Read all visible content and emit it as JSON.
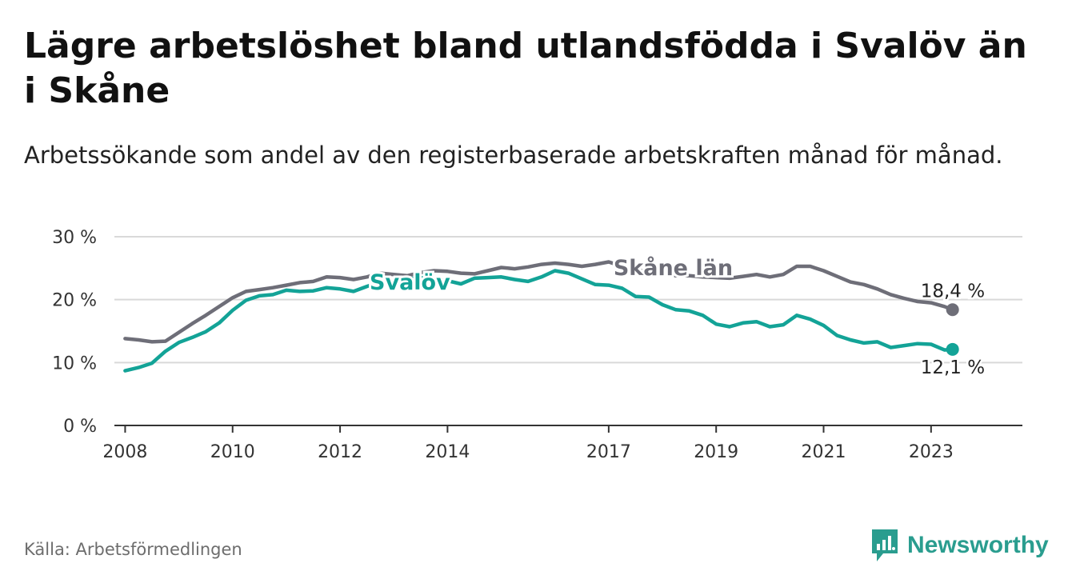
{
  "title": "Lägre arbetslöshet bland utlandsfödda i Svalöv än i Skåne",
  "subtitle": "Arbetssökande som andel av den registerbaserade arbetskraften månad för månad.",
  "source": "Källa: Arbetsförmedlingen",
  "brand": "Newsworthy",
  "colors": {
    "svalov": "#13a397",
    "skane": "#6e6e78",
    "grid": "#d9d9d9",
    "axis": "#333333",
    "brand": "#2a9d8f"
  },
  "chart_data": {
    "type": "line",
    "title": "Lägre arbetslöshet bland utlandsfödda i Svalöv än i Skåne",
    "xlabel": "",
    "ylabel": "",
    "xlim": [
      2007.8,
      2024.7
    ],
    "ylim": [
      0,
      30
    ],
    "y_ticks": [
      0,
      10,
      20,
      30
    ],
    "y_tick_labels": [
      "0 %",
      "10 %",
      "20 %",
      "30 %"
    ],
    "x_ticks": [
      2008,
      2010,
      2012,
      2014,
      2017,
      2019,
      2021,
      2023
    ],
    "x_tick_labels": [
      "2008",
      "2010",
      "2012",
      "2014",
      "2017",
      "2019",
      "2021",
      "2023"
    ],
    "series": [
      {
        "name": "Skåne län",
        "key": "skane",
        "label": "Skåne län",
        "end_label": "18,4 %",
        "x": [
          2008.0,
          2008.25,
          2008.5,
          2008.75,
          2009.0,
          2009.25,
          2009.5,
          2009.75,
          2010.0,
          2010.25,
          2010.5,
          2010.75,
          2011.0,
          2011.25,
          2011.5,
          2011.75,
          2012.0,
          2012.25,
          2012.5,
          2012.75,
          2013.0,
          2013.25,
          2013.5,
          2013.75,
          2014.0,
          2014.25,
          2014.5,
          2014.75,
          2015.0,
          2015.25,
          2015.5,
          2015.75,
          2016.0,
          2016.25,
          2016.5,
          2016.75,
          2017.0,
          2017.25,
          2017.5,
          2017.75,
          2018.0,
          2018.25,
          2018.5,
          2018.75,
          2019.0,
          2019.25,
          2019.5,
          2019.75,
          2020.0,
          2020.25,
          2020.5,
          2020.75,
          2021.0,
          2021.25,
          2021.5,
          2021.75,
          2022.0,
          2022.25,
          2022.5,
          2022.75,
          2023.0,
          2023.25,
          2023.4
        ],
        "values": [
          13.8,
          13.6,
          13.3,
          13.4,
          14.8,
          16.2,
          17.5,
          18.9,
          20.3,
          21.3,
          21.6,
          21.9,
          22.3,
          22.7,
          22.9,
          23.6,
          23.5,
          23.2,
          23.6,
          24.2,
          24.0,
          23.8,
          24.3,
          24.6,
          24.5,
          24.2,
          24.1,
          24.6,
          25.1,
          24.9,
          25.2,
          25.6,
          25.8,
          25.6,
          25.3,
          25.6,
          26.0,
          25.3,
          24.8,
          24.3,
          24.0,
          23.8,
          23.8,
          23.6,
          23.5,
          23.4,
          23.7,
          24.0,
          23.6,
          24.0,
          25.3,
          25.3,
          24.6,
          23.7,
          22.8,
          22.4,
          21.7,
          20.8,
          20.2,
          19.7,
          19.5,
          18.9,
          18.4
        ]
      },
      {
        "name": "Svalöv",
        "key": "svalov",
        "label": "Svalöv",
        "end_label": "12,1 %",
        "x": [
          2008.0,
          2008.25,
          2008.5,
          2008.75,
          2009.0,
          2009.25,
          2009.5,
          2009.75,
          2010.0,
          2010.25,
          2010.5,
          2010.75,
          2011.0,
          2011.25,
          2011.5,
          2011.75,
          2012.0,
          2012.25,
          2012.5,
          2012.75,
          2013.0,
          2013.25,
          2013.5,
          2013.75,
          2014.0,
          2014.25,
          2014.5,
          2014.75,
          2015.0,
          2015.25,
          2015.5,
          2015.75,
          2016.0,
          2016.25,
          2016.5,
          2016.75,
          2017.0,
          2017.25,
          2017.5,
          2017.75,
          2018.0,
          2018.25,
          2018.5,
          2018.75,
          2019.0,
          2019.25,
          2019.5,
          2019.75,
          2020.0,
          2020.25,
          2020.5,
          2020.75,
          2021.0,
          2021.25,
          2021.5,
          2021.75,
          2022.0,
          2022.25,
          2022.5,
          2022.75,
          2023.0,
          2023.25,
          2023.4
        ],
        "values": [
          8.7,
          9.2,
          9.9,
          11.8,
          13.2,
          14.0,
          14.9,
          16.3,
          18.3,
          19.9,
          20.6,
          20.8,
          21.5,
          21.3,
          21.4,
          21.9,
          21.7,
          21.3,
          22.1,
          22.8,
          22.8,
          23.3,
          23.5,
          23.2,
          23.0,
          22.5,
          23.4,
          23.5,
          23.6,
          23.2,
          22.9,
          23.6,
          24.6,
          24.2,
          23.3,
          22.4,
          22.3,
          21.8,
          20.5,
          20.4,
          19.2,
          18.4,
          18.2,
          17.5,
          16.1,
          15.7,
          16.3,
          16.5,
          15.7,
          16.0,
          17.5,
          16.9,
          15.9,
          14.3,
          13.6,
          13.1,
          13.3,
          12.4,
          12.7,
          13.0,
          12.9,
          12.0,
          12.1
        ]
      }
    ]
  }
}
